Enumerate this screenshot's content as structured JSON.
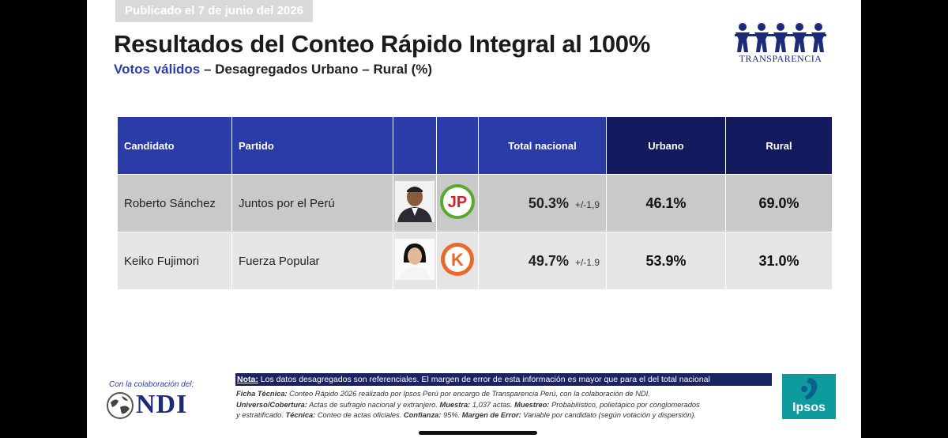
{
  "badge": "Publicado el 7 de junio del 2026",
  "header": {
    "title": "Resultados del Conteo Rápido Integral al 100%",
    "subtitle_highlight": "Votos válidos",
    "subtitle": "– Desagregados Urbano – Rural (%)",
    "logo": "TRANSPARENCIA"
  },
  "table": {
    "columns": [
      "Candidato",
      "Partido",
      "Total nacional",
      "Urbano",
      "Rural"
    ],
    "rows": [
      {
        "candidate": "Roberto Sánchez",
        "party": "Juntos por el Perú",
        "party_logo": "JP",
        "total": "50.3%",
        "margin": "+/-1,9",
        "urban": "46.1%",
        "rural": "69.0%"
      },
      {
        "candidate": "Keiko Fujimori",
        "party": "Fuerza Popular",
        "party_logo": "K",
        "total": "49.7%",
        "margin": "+/-1.9",
        "urban": "53.9%",
        "rural": "31.0%"
      }
    ]
  },
  "footer": {
    "collaboration": "Con la colaboración del:",
    "ndi": "NDI",
    "ipsos": "Ipsos",
    "note_label": "Nota:",
    "note": "Los datos desagregados son referenciales. El margen de error de esta información es mayor que para el del total nacional",
    "technical": [
      [
        {
          "label": "Ficha Técnica:"
        },
        {
          "text": " Conteo Rápido 2026 realizado por Ipsos Perú por encargo de Transparencia Perú, con la colaboración de NDI."
        }
      ],
      [
        {
          "label": "Universo/Cobertura:"
        },
        {
          "text": " Actas de sufragio nacional y extranjero. "
        },
        {
          "label": "Muestra:"
        },
        {
          "text": " 1,037 actas. "
        },
        {
          "label": "Muestreo:"
        },
        {
          "text": " Probabilístico, polietápico por conglomerados"
        }
      ],
      [
        {
          "text": "y estratificado. "
        },
        {
          "label": "Técnica:"
        },
        {
          "text": " Conteo de actas oficiales. "
        },
        {
          "label": "Confianza:"
        },
        {
          "text": " 95%. "
        },
        {
          "label": "Margen de Error:"
        },
        {
          "text": " Variable por candidato (según votación y dispersión)."
        }
      ]
    ]
  }
}
